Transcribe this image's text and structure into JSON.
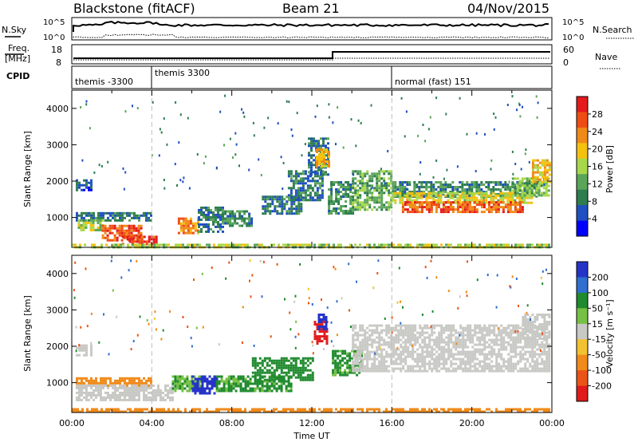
{
  "header": {
    "site": "Blackstone (fitACF)",
    "beam": "Beam 21",
    "date": "04/Nov/2015"
  },
  "noise_panel": {
    "left_label": "N.Sky",
    "right_label": "N.Search",
    "left_ticks": [
      "10^5",
      "10^0"
    ],
    "right_ticks": [
      "10^5",
      "10^0"
    ]
  },
  "freq_panel": {
    "left_label_1": "Freq.",
    "left_label_2": "[MHz]",
    "right_label": "Nave",
    "left_ticks": [
      "18",
      "8"
    ],
    "right_ticks": [
      "60",
      "0"
    ]
  },
  "cpid_panel": {
    "label": "CPID",
    "segments": [
      {
        "start_hour": 0,
        "text": "themis -3300"
      },
      {
        "start_hour": 4,
        "text": "themis 3300"
      },
      {
        "start_hour": 16,
        "text": "normal (fast) 151"
      }
    ]
  },
  "colors": {
    "power_scale": [
      "#0000ff",
      "#1f4fc0",
      "#2e7d4f",
      "#5aa55a",
      "#a8d84a",
      "#f4c10f",
      "#f08a17",
      "#ef4d14",
      "#e41a1c"
    ],
    "velocity_scale": [
      "#2633c8",
      "#2f6fd0",
      "#1f8a2e",
      "#76c043",
      "#c8c8c4",
      "#f2c230",
      "#f08a1a",
      "#ea5416",
      "#e11a1a"
    ],
    "ground_scatter": "#c8c8c4"
  },
  "chart_data": [
    {
      "type": "heatmap",
      "name": "power",
      "xlabel": "",
      "ylabel": "Slant Range [km]",
      "xlim": [
        0,
        24
      ],
      "ylim": [
        180,
        4500
      ],
      "y_ticks": [
        "1000",
        "2000",
        "3000",
        "4000"
      ],
      "colorbar_label": "Power [dB]",
      "colorbar_ticks": [
        "4",
        "8",
        "12",
        "16",
        "20",
        "24",
        "28"
      ],
      "colorbar_range": [
        0,
        32
      ],
      "bands": [
        {
          "t0": 0.2,
          "t1": 1.0,
          "r0": 1750,
          "r1": 2050,
          "value": 6
        },
        {
          "t0": 0.2,
          "t1": 4.0,
          "r0": 950,
          "r1": 1150,
          "value": 8
        },
        {
          "t0": 0.3,
          "t1": 1.5,
          "r0": 650,
          "r1": 950,
          "value": 16
        },
        {
          "t0": 1.5,
          "t1": 3.5,
          "r0": 350,
          "r1": 800,
          "value": 26
        },
        {
          "t0": 2.5,
          "t1": 4.2,
          "r0": 250,
          "r1": 500,
          "value": 28
        },
        {
          "t0": 5.3,
          "t1": 6.3,
          "r0": 600,
          "r1": 1000,
          "value": 24
        },
        {
          "t0": 6.3,
          "t1": 7.5,
          "r0": 600,
          "r1": 1300,
          "value": 8
        },
        {
          "t0": 7.5,
          "t1": 9.0,
          "r0": 800,
          "r1": 1200,
          "value": 10
        },
        {
          "t0": 9.5,
          "t1": 11.5,
          "r0": 1100,
          "r1": 1600,
          "value": 8
        },
        {
          "t0": 10.8,
          "t1": 12.5,
          "r0": 1500,
          "r1": 2300,
          "value": 8
        },
        {
          "t0": 11.8,
          "t1": 12.8,
          "r0": 2200,
          "r1": 3200,
          "value": 8
        },
        {
          "t0": 12.2,
          "t1": 12.8,
          "r0": 2400,
          "r1": 2900,
          "value": 20
        },
        {
          "t0": 12.8,
          "t1": 14.0,
          "r0": 1100,
          "r1": 2000,
          "value": 10
        },
        {
          "t0": 14.0,
          "t1": 16.0,
          "r0": 1200,
          "r1": 2300,
          "value": 12
        },
        {
          "t0": 16.0,
          "t1": 23.3,
          "r0": 1600,
          "r1": 2000,
          "value": 10
        },
        {
          "t0": 16.0,
          "t1": 23.0,
          "r0": 1400,
          "r1": 1700,
          "value": 18
        },
        {
          "t0": 16.5,
          "t1": 22.5,
          "r0": 1150,
          "r1": 1450,
          "value": 26
        },
        {
          "t0": 22.0,
          "t1": 23.8,
          "r0": 1600,
          "r1": 2100,
          "value": 14
        },
        {
          "t0": 23.0,
          "t1": 23.9,
          "r0": 2000,
          "r1": 2600,
          "value": 20
        },
        {
          "t0": 0.0,
          "t1": 23.9,
          "r0": 180,
          "r1": 280,
          "value": 16
        }
      ]
    },
    {
      "type": "heatmap",
      "name": "velocity",
      "xlabel": "Time UT",
      "ylabel": "Slant Range [km]",
      "xlim": [
        0,
        24
      ],
      "ylim": [
        180,
        4500
      ],
      "x_ticks": [
        "00:00",
        "04:00",
        "08:00",
        "12:00",
        "16:00",
        "20:00",
        "00:00"
      ],
      "y_ticks": [
        "1000",
        "2000",
        "3000",
        "4000"
      ],
      "colorbar_label": "Velocity [m s⁻¹]",
      "colorbar_ticks": [
        "200",
        "100",
        "50",
        "15",
        "-15",
        "-50",
        "-100",
        "-200"
      ],
      "bands": [
        {
          "t0": 0.2,
          "t1": 1.0,
          "r0": 1750,
          "r1": 2050,
          "value": 0
        },
        {
          "t0": 0.2,
          "t1": 4.0,
          "r0": 950,
          "r1": 1150,
          "value": -60
        },
        {
          "t0": 0.2,
          "t1": 5.0,
          "r0": 500,
          "r1": 950,
          "value": 0
        },
        {
          "t0": 5.0,
          "t1": 6.5,
          "r0": 800,
          "r1": 1200,
          "value": 30
        },
        {
          "t0": 6.0,
          "t1": 7.2,
          "r0": 700,
          "r1": 1200,
          "value": 200
        },
        {
          "t0": 7.2,
          "t1": 11.0,
          "r0": 800,
          "r1": 1200,
          "value": 40
        },
        {
          "t0": 9.0,
          "t1": 12.0,
          "r0": 1100,
          "r1": 1700,
          "value": 60
        },
        {
          "t0": 12.1,
          "t1": 12.7,
          "r0": 2100,
          "r1": 2700,
          "value": -200
        },
        {
          "t0": 12.3,
          "t1": 12.7,
          "r0": 2500,
          "r1": 2900,
          "value": 200
        },
        {
          "t0": 13.0,
          "t1": 14.5,
          "r0": 1200,
          "r1": 1900,
          "value": 40
        },
        {
          "t0": 14.0,
          "t1": 23.9,
          "r0": 1300,
          "r1": 2600,
          "value": 0
        },
        {
          "t0": 22.5,
          "t1": 23.9,
          "r0": 2200,
          "r1": 2900,
          "value": 0
        },
        {
          "t0": 0.0,
          "t1": 23.9,
          "r0": 180,
          "r1": 300,
          "value": -60
        }
      ]
    }
  ]
}
